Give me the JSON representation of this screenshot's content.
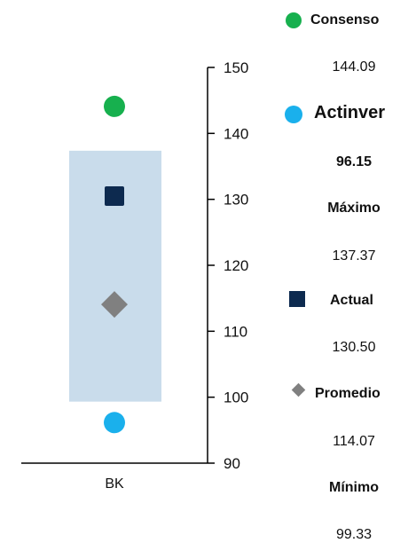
{
  "chart_data": {
    "type": "scatter",
    "categories": [
      "BK"
    ],
    "ylim": [
      90,
      150
    ],
    "yticks": [
      90,
      100,
      110,
      120,
      130,
      140,
      150
    ],
    "range_band": {
      "min": 99.33,
      "max": 137.37,
      "color": "#c9dceb"
    },
    "series": [
      {
        "name": "Consenso",
        "value": 144.09,
        "marker": "circle",
        "color": "#17b04e"
      },
      {
        "name": "Actual",
        "value": 130.5,
        "marker": "square",
        "color": "#0d2a4f"
      },
      {
        "name": "Promedio",
        "value": 114.07,
        "marker": "diamond",
        "color": "#808080"
      },
      {
        "name": "Actinver",
        "value": 96.15,
        "marker": "circle",
        "color": "#1ab0ec"
      }
    ]
  },
  "legend": {
    "consenso_label": "Consenso",
    "consenso_value": "144.09",
    "actinver_label": "Actinver",
    "actinver_value": "96.15",
    "maximo_label": "Máximo",
    "maximo_value": "137.37",
    "actual_label": "Actual",
    "actual_value": "130.50",
    "promedio_label": "Promedio",
    "promedio_value": "114.07",
    "minimo_label": "Mínimo",
    "minimo_value": "99.33"
  }
}
